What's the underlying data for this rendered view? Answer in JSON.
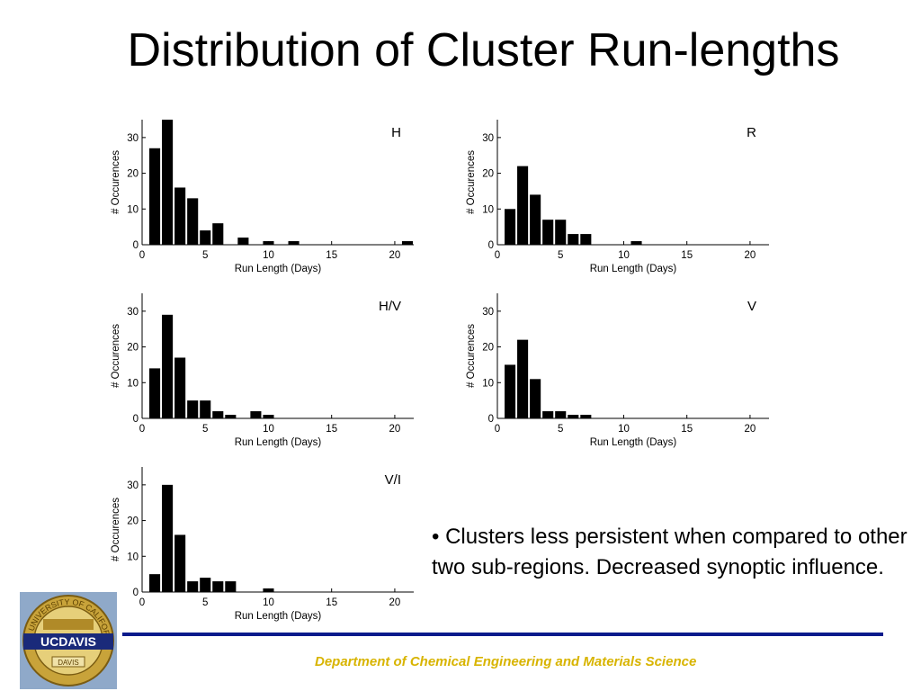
{
  "slide": {
    "title": "Distribution of Cluster Run-lengths",
    "bullet": "• Clusters less persistent when compared to other two sub-regions. Decreased synoptic influence.",
    "footer": "Department of Chemical Engineering and Materials Science",
    "logo": {
      "top_text": "THE UNIVERSITY OF CALIFORNIA",
      "center_text": "UCDAVIS",
      "ribbon_text": "DAVIS"
    },
    "colors": {
      "accent_rule": "#0a1a8c",
      "footer_text": "#d8b400",
      "bars": "#000000",
      "logo_gold": "#c8a33a"
    }
  },
  "chart_data": [
    {
      "type": "bar",
      "panel_label": "H",
      "xlabel": "Run Length (Days)",
      "ylabel": "# Occurences",
      "xlim": [
        0,
        21.5
      ],
      "ylim": [
        0,
        35
      ],
      "xticks": [
        0,
        5,
        10,
        15,
        20
      ],
      "yticks": [
        0,
        10,
        20,
        30
      ],
      "x": [
        1,
        2,
        3,
        4,
        5,
        6,
        8,
        10,
        12,
        21
      ],
      "values": [
        27,
        35,
        16,
        13,
        4,
        6,
        2,
        1,
        1,
        1
      ]
    },
    {
      "type": "bar",
      "panel_label": "R",
      "xlabel": "Run Length (Days)",
      "ylabel": "# Occurences",
      "xlim": [
        0,
        21.5
      ],
      "ylim": [
        0,
        35
      ],
      "xticks": [
        0,
        5,
        10,
        15,
        20
      ],
      "yticks": [
        0,
        10,
        20,
        30
      ],
      "x": [
        1,
        2,
        3,
        4,
        5,
        6,
        7,
        11
      ],
      "values": [
        10,
        22,
        14,
        7,
        7,
        3,
        3,
        1
      ]
    },
    {
      "type": "bar",
      "panel_label": "H/V",
      "xlabel": "Run Length (Days)",
      "ylabel": "# Occurences",
      "xlim": [
        0,
        21.5
      ],
      "ylim": [
        0,
        35
      ],
      "xticks": [
        0,
        5,
        10,
        15,
        20
      ],
      "yticks": [
        0,
        10,
        20,
        30
      ],
      "x": [
        1,
        2,
        3,
        4,
        5,
        6,
        7,
        9,
        10
      ],
      "values": [
        14,
        29,
        17,
        5,
        5,
        2,
        1,
        2,
        1
      ]
    },
    {
      "type": "bar",
      "panel_label": "V",
      "xlabel": "Run Length (Days)",
      "ylabel": "# Occurences",
      "xlim": [
        0,
        21.5
      ],
      "ylim": [
        0,
        35
      ],
      "xticks": [
        0,
        5,
        10,
        15,
        20
      ],
      "yticks": [
        0,
        10,
        20,
        30
      ],
      "x": [
        1,
        2,
        3,
        4,
        5,
        6,
        7
      ],
      "values": [
        15,
        22,
        11,
        2,
        2,
        1,
        1
      ]
    },
    {
      "type": "bar",
      "panel_label": "V/I",
      "xlabel": "Run Length (Days)",
      "ylabel": "# Occurences",
      "xlim": [
        0,
        21.5
      ],
      "ylim": [
        0,
        35
      ],
      "xticks": [
        0,
        5,
        10,
        15,
        20
      ],
      "yticks": [
        0,
        10,
        20,
        30
      ],
      "x": [
        1,
        2,
        3,
        4,
        5,
        6,
        7,
        10
      ],
      "values": [
        5,
        30,
        16,
        3,
        4,
        3,
        3,
        1
      ]
    }
  ]
}
